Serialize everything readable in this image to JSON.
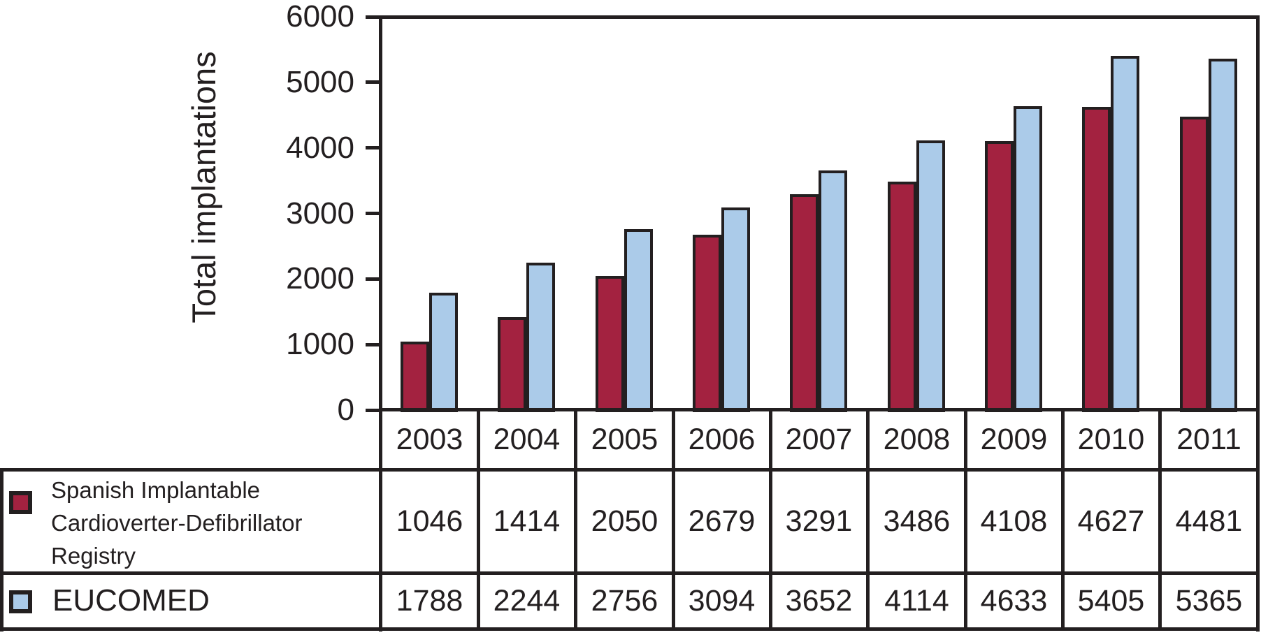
{
  "chart_data": {
    "type": "bar",
    "title": "",
    "xlabel": "",
    "ylabel": "Total implantations",
    "ylim": [
      0,
      6000
    ],
    "yticks": [
      0,
      1000,
      2000,
      3000,
      4000,
      5000,
      6000
    ],
    "grid": false,
    "legend_position": "table-left",
    "categories": [
      "2003",
      "2004",
      "2005",
      "2006",
      "2007",
      "2008",
      "2009",
      "2010",
      "2011"
    ],
    "series": [
      {
        "name": "Spanish Implantable Cardioverter-Defibrillator Registry",
        "key": "spanish-icd-registry",
        "color": "#A32240",
        "values": [
          1046,
          1414,
          2050,
          2679,
          3291,
          3486,
          4108,
          4627,
          4481
        ]
      },
      {
        "name": "EUCOMED",
        "key": "eucomed",
        "color": "#ABCBE9",
        "values": [
          1788,
          2244,
          2756,
          3094,
          3652,
          4114,
          4633,
          5405,
          5365
        ]
      }
    ]
  },
  "colors": {
    "line": "#231F20",
    "text": "#231F20",
    "background": "#FFFFFF"
  }
}
